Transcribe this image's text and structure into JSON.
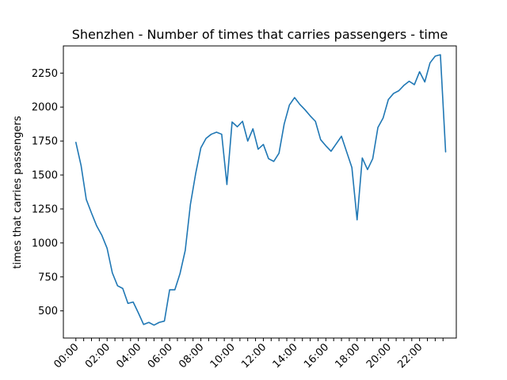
{
  "chart_data": {
    "type": "line",
    "title": "Shenzhen - Number of times that carries passengers - time",
    "xlabel": "",
    "ylabel": "times that carries passengers",
    "x_unit": "hours (half-hour intervals)",
    "xlim": [
      -0.8,
      24.35
    ],
    "ylim": [
      300,
      2450
    ],
    "grid": false,
    "legend": "none",
    "x_tick_labels": [
      "00:00",
      "02:00",
      "04:00",
      "06:00",
      "08:00",
      "10:00",
      "12:00",
      "14:00",
      "16:00",
      "18:00",
      "20:00",
      "22:00"
    ],
    "y_ticks": [
      500,
      750,
      1000,
      1250,
      1500,
      1750,
      2000,
      2250
    ],
    "series": [
      {
        "name": "",
        "color": "#1f77b4",
        "x": [
          0,
          0.333,
          0.667,
          1,
          1.333,
          1.667,
          2,
          2.333,
          2.667,
          3,
          3.333,
          3.667,
          4,
          4.333,
          4.667,
          5,
          5.333,
          5.667,
          6,
          6.333,
          6.667,
          7,
          7.333,
          7.667,
          8,
          8.333,
          8.667,
          9,
          9.333,
          9.667,
          10,
          10.333,
          10.667,
          11,
          11.333,
          11.667,
          12,
          12.333,
          12.667,
          13,
          13.333,
          13.667,
          14,
          14.333,
          14.667,
          15,
          15.333,
          15.667,
          16,
          16.333,
          16.667,
          17,
          17.333,
          17.667,
          18,
          18.333,
          18.667,
          19,
          19.333,
          19.667,
          20,
          20.333,
          20.667,
          21,
          21.333,
          21.667,
          22,
          22.333,
          22.667,
          23,
          23.333,
          23.667
        ],
        "y": [
          1740,
          1570,
          1320,
          1220,
          1125,
          1055,
          960,
          780,
          685,
          665,
          555,
          565,
          485,
          400,
          415,
          395,
          415,
          425,
          655,
          655,
          775,
          945,
          1285,
          1510,
          1700,
          1770,
          1800,
          1815,
          1800,
          1430,
          1890,
          1855,
          1895,
          1750,
          1840,
          1690,
          1725,
          1620,
          1600,
          1660,
          1875,
          2015,
          2070,
          2020,
          1980,
          1935,
          1895,
          1760,
          1715,
          1675,
          1730,
          1785,
          1670,
          1555,
          1170,
          1625,
          1540,
          1620,
          1850,
          1920,
          2055,
          2100,
          2120,
          2160,
          2190,
          2165,
          2260,
          2185,
          2325,
          2375,
          2385,
          1670
        ]
      }
    ]
  }
}
